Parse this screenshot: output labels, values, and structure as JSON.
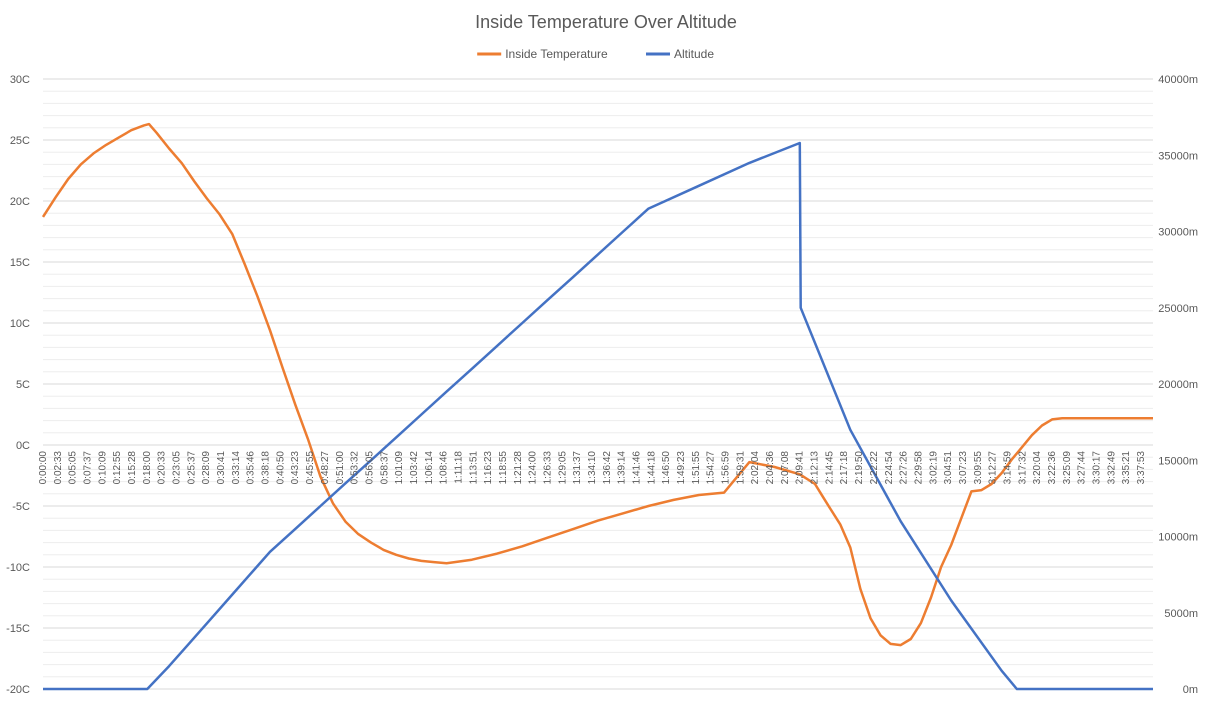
{
  "chart_data": {
    "type": "line",
    "title": "Inside Temperature Over Altitude",
    "legend": {
      "placement": "top-center"
    },
    "grid": true,
    "x": {
      "label": "",
      "type": "time",
      "tick_labels": [
        "0:00:00",
        "0:02:33",
        "0:05:05",
        "0:07:37",
        "0:10:09",
        "0:12:55",
        "0:15:28",
        "0:18:00",
        "0:20:33",
        "0:23:05",
        "0:25:37",
        "0:28:09",
        "0:30:41",
        "0:33:14",
        "0:35:46",
        "0:38:18",
        "0:40:50",
        "0:43:23",
        "0:45:55",
        "0:48:27",
        "0:51:00",
        "0:53:32",
        "0:56:05",
        "0:58:37",
        "1:01:09",
        "1:03:42",
        "1:06:14",
        "1:08:46",
        "1:11:18",
        "1:13:51",
        "1:16:23",
        "1:18:55",
        "1:21:28",
        "1:24:00",
        "1:26:33",
        "1:29:05",
        "1:31:37",
        "1:34:10",
        "1:36:42",
        "1:39:14",
        "1:41:46",
        "1:44:18",
        "1:46:50",
        "1:49:23",
        "1:51:55",
        "1:54:27",
        "1:56:59",
        "1:59:31",
        "2:02:04",
        "2:04:36",
        "2:07:08",
        "2:09:41",
        "2:12:13",
        "2:14:45",
        "2:17:18",
        "2:19:50",
        "2:22:22",
        "2:24:54",
        "2:27:26",
        "2:29:58",
        "3:02:19",
        "3:04:51",
        "3:07:23",
        "3:09:55",
        "3:12:27",
        "3:14:59",
        "3:17:32",
        "3:20:04",
        "3:22:36",
        "3:25:09",
        "3:27:44",
        "3:30:17",
        "3:32:49",
        "3:35:21",
        "3:37:53"
      ],
      "range": [
        "0:00:00",
        "3:40:00"
      ]
    },
    "y_left": {
      "label": "",
      "unit": "C",
      "ylim": [
        -20,
        30
      ],
      "ticks": [
        "30C",
        "25C",
        "20C",
        "15C",
        "10C",
        "5C",
        "0C",
        "-5C",
        "-10C",
        "-15C",
        "-20C"
      ]
    },
    "y_right": {
      "label": "",
      "unit": "m",
      "ylim": [
        0,
        40000
      ],
      "ticks": [
        "40000m",
        "35000m",
        "30000m",
        "25000m",
        "20000m",
        "15000m",
        "10000m",
        "5000m",
        "0m"
      ]
    },
    "series": [
      {
        "name": "Inside Temperature",
        "color": "#ED7D31",
        "axis": "left",
        "x": [
          "0:00:00",
          "0:02:30",
          "0:05:00",
          "0:07:30",
          "0:10:00",
          "0:12:30",
          "0:15:00",
          "0:17:30",
          "0:20:00",
          "0:21:00",
          "0:22:30",
          "0:25:00",
          "0:27:30",
          "0:30:00",
          "0:32:30",
          "0:35:00",
          "0:37:30",
          "0:40:00",
          "0:42:30",
          "0:45:00",
          "0:47:30",
          "0:50:00",
          "0:52:30",
          "0:55:00",
          "0:57:30",
          "1:00:00",
          "1:02:30",
          "1:05:00",
          "1:07:30",
          "1:10:00",
          "1:12:30",
          "1:15:00",
          "1:17:30",
          "1:20:00",
          "1:25:00",
          "1:30:00",
          "1:35:00",
          "1:40:00",
          "1:45:00",
          "1:50:00",
          "1:55:00",
          "2:00:00",
          "2:05:00",
          "2:10:00",
          "2:15:00",
          "2:20:00",
          "2:25:00",
          "2:30:00",
          "2:33:00",
          "2:34:30",
          "2:36:00",
          "2:38:00",
          "2:40:00",
          "2:42:00",
          "2:44:00",
          "2:46:00",
          "2:48:00",
          "2:50:00",
          "2:52:00",
          "2:54:00",
          "2:56:00",
          "2:58:00",
          "3:00:00",
          "3:02:00",
          "3:04:00",
          "3:06:00",
          "3:08:00",
          "3:10:00",
          "3:12:00",
          "3:14:00",
          "3:16:00",
          "3:18:00",
          "3:20:00",
          "3:22:00",
          "3:24:00",
          "3:26:00",
          "3:28:00",
          "3:30:00",
          "3:32:00",
          "3:34:00",
          "3:36:00",
          "3:38:00",
          "3:40:00"
        ],
        "values": [
          18.7,
          20.3,
          21.8,
          23.0,
          23.9,
          24.6,
          25.2,
          25.8,
          26.2,
          26.3,
          25.6,
          24.3,
          23.1,
          21.6,
          20.2,
          18.9,
          17.3,
          14.8,
          12.2,
          9.4,
          6.3,
          3.3,
          0.5,
          -2.6,
          -4.8,
          -6.3,
          -7.3,
          -8.0,
          -8.6,
          -9.0,
          -9.3,
          -9.5,
          -9.6,
          -9.7,
          -9.4,
          -8.9,
          -8.3,
          -7.6,
          -6.9,
          -6.2,
          -5.6,
          -5.0,
          -4.5,
          -4.1,
          -3.9,
          -1.4,
          -1.8,
          -2.4,
          -3.2,
          -4.2,
          -5.2,
          -6.5,
          -8.4,
          -11.8,
          -14.2,
          -15.6,
          -16.3,
          -16.4,
          -15.9,
          -14.6,
          -12.5,
          -10.0,
          -8.2,
          -6.0,
          -3.8,
          -3.7,
          -3.2,
          -2.3,
          -1.2,
          -0.2,
          0.8,
          1.6,
          2.1,
          2.2,
          2.2,
          2.2,
          2.2,
          2.2,
          2.2,
          2.2,
          2.2,
          2.2,
          2.2
        ],
        "note_x_scale": "index"
      },
      {
        "name": "Altitude",
        "color": "#4472C4",
        "axis": "right",
        "values_by_index": true,
        "values": [
          0,
          0,
          0,
          0,
          0,
          0,
          0,
          0,
          0,
          0,
          1500,
          3000,
          4500,
          6000,
          7500,
          9000,
          10500,
          12000,
          13500,
          15000,
          16500,
          18000,
          19500,
          21000,
          22500,
          24000,
          25500,
          27000,
          28500,
          30000,
          31500,
          33000,
          34500,
          35800,
          25000,
          17000,
          11000,
          5800,
          1200,
          0,
          0,
          0,
          0,
          0,
          0,
          0
        ],
        "x_at_index": [
          "0:00:00",
          "0:05:00",
          "0:10:00",
          "0:15:00",
          "0:18:00",
          "0:19:00",
          "0:19:30",
          "0:20:00",
          "0:20:30",
          "0:20:40",
          "0:25:00",
          "0:29:00",
          "0:33:00",
          "0:37:00",
          "0:41:00",
          "0:45:00",
          "0:50:00",
          "0:55:00",
          "1:00:00",
          "1:05:00",
          "1:10:00",
          "1:15:00",
          "1:20:00",
          "1:25:00",
          "1:30:00",
          "1:35:00",
          "1:40:00",
          "1:45:00",
          "1:50:00",
          "1:55:00",
          "2:00:00",
          "2:10:00",
          "2:20:00",
          "2:30:00",
          "2:30:10",
          "2:40:00",
          "2:50:00",
          "3:00:00",
          "3:10:00",
          "3:13:00",
          "3:16:00",
          "3:20:00",
          "3:25:00",
          "3:30:00",
          "3:35:00",
          "3:40:00"
        ]
      }
    ]
  }
}
